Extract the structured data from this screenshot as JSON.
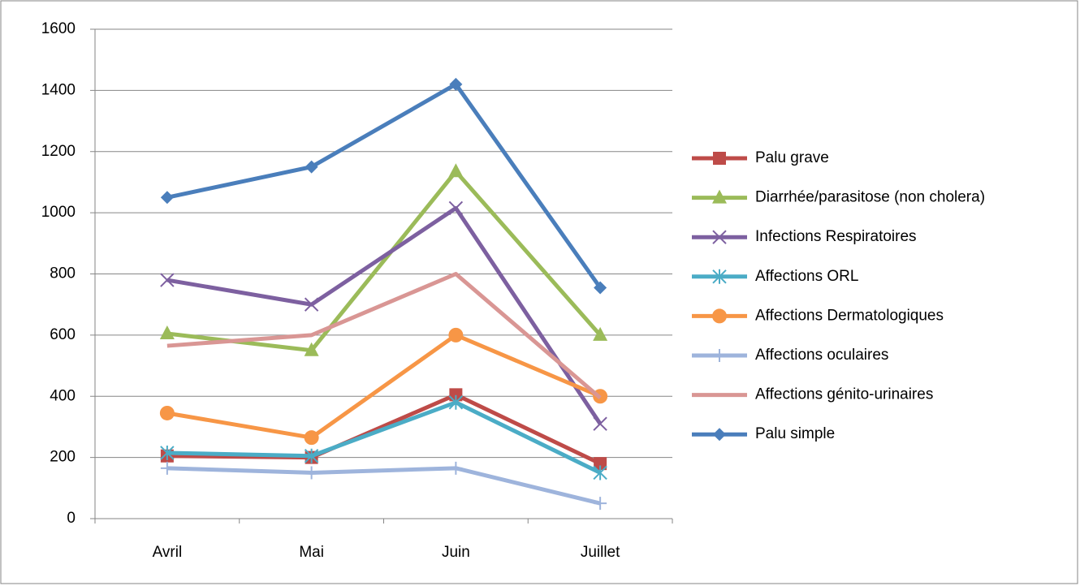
{
  "chart_data": {
    "type": "line",
    "categories": [
      "Avril",
      "Mai",
      "Juin",
      "Juillet"
    ],
    "ylim": [
      0,
      1600
    ],
    "yticks": [
      0,
      200,
      400,
      600,
      800,
      1000,
      1200,
      1400,
      1600
    ],
    "grid": true,
    "legend": "right",
    "series": [
      {
        "name": "Palu grave",
        "color": "#be4b48",
        "marker": "square",
        "values": [
          205,
          200,
          405,
          180
        ]
      },
      {
        "name": "Diarrhée/parasitose (non cholera)",
        "color": "#9bbb59",
        "marker": "triangle",
        "values": [
          605,
          550,
          1135,
          600
        ]
      },
      {
        "name": "Infections Respiratoires",
        "color": "#7d60a0",
        "marker": "x",
        "values": [
          780,
          700,
          1015,
          310
        ]
      },
      {
        "name": "Affections ORL",
        "color": "#4bacc6",
        "marker": "asterisk",
        "values": [
          215,
          205,
          380,
          150
        ]
      },
      {
        "name": "Affections Dermatologiques",
        "color": "#f79646",
        "marker": "circle",
        "values": [
          345,
          265,
          600,
          400
        ]
      },
      {
        "name": "Affections oculaires",
        "color": "#9eb4dc",
        "marker": "plus",
        "values": [
          165,
          150,
          165,
          50
        ]
      },
      {
        "name": "Affections génito-urinaires",
        "color": "#d99694",
        "marker": "none",
        "values": [
          565,
          600,
          800,
          395
        ]
      },
      {
        "name": "Palu simple",
        "color": "#4a7ebb",
        "marker": "diamond",
        "values": [
          1050,
          1150,
          1420,
          755
        ]
      }
    ]
  }
}
